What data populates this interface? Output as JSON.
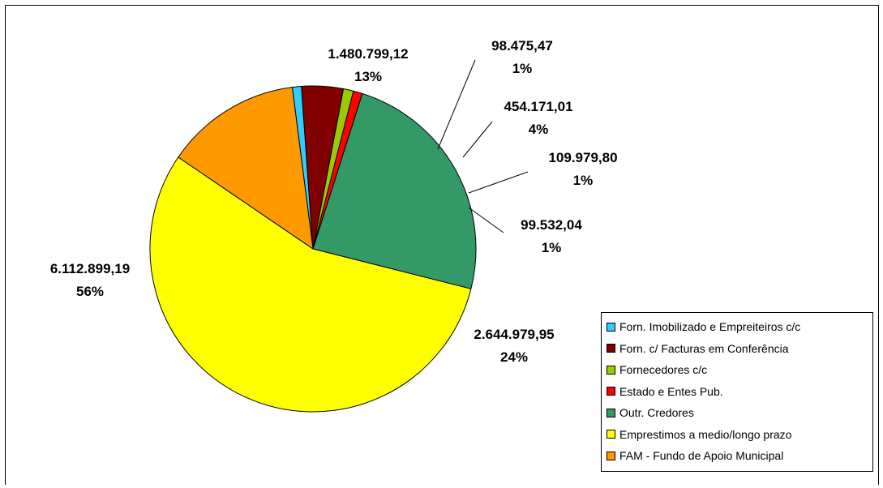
{
  "chart_data": {
    "type": "pie",
    "title": "",
    "slices": [
      {
        "name": "Forn. Imobilizado e Empreiteiros c/c",
        "value": 98475.47,
        "value_label": "98.475,47",
        "percent_label": "1%",
        "color": "#33ccff"
      },
      {
        "name": "Forn. c/ Facturas em Conferência",
        "value": 454171.01,
        "value_label": "454.171,01",
        "percent_label": "4%",
        "color": "#800000"
      },
      {
        "name": "Fornecedores c/c",
        "value": 109979.8,
        "value_label": "109.979,80",
        "percent_label": "1%",
        "color": "#99cc00"
      },
      {
        "name": "Estado e Entes Pub.",
        "value": 99532.04,
        "value_label": "99.532,04",
        "percent_label": "1%",
        "color": "#ff0000"
      },
      {
        "name": "Outr. Credores",
        "value": 2644979.95,
        "value_label": "2.644.979,95",
        "percent_label": "24%",
        "color": "#339966"
      },
      {
        "name": "Emprestimos a medio/longo prazo",
        "value": 6112899.19,
        "value_label": "6.112.899,19",
        "percent_label": "56%",
        "color": "#ffff00"
      },
      {
        "name": "FAM - Fundo de Apoio Municipal",
        "value": 1480799.12,
        "value_label": "1.480.799,12",
        "percent_label": "13%",
        "color": "#ff9900"
      }
    ],
    "legend_position": "bottom-right"
  }
}
